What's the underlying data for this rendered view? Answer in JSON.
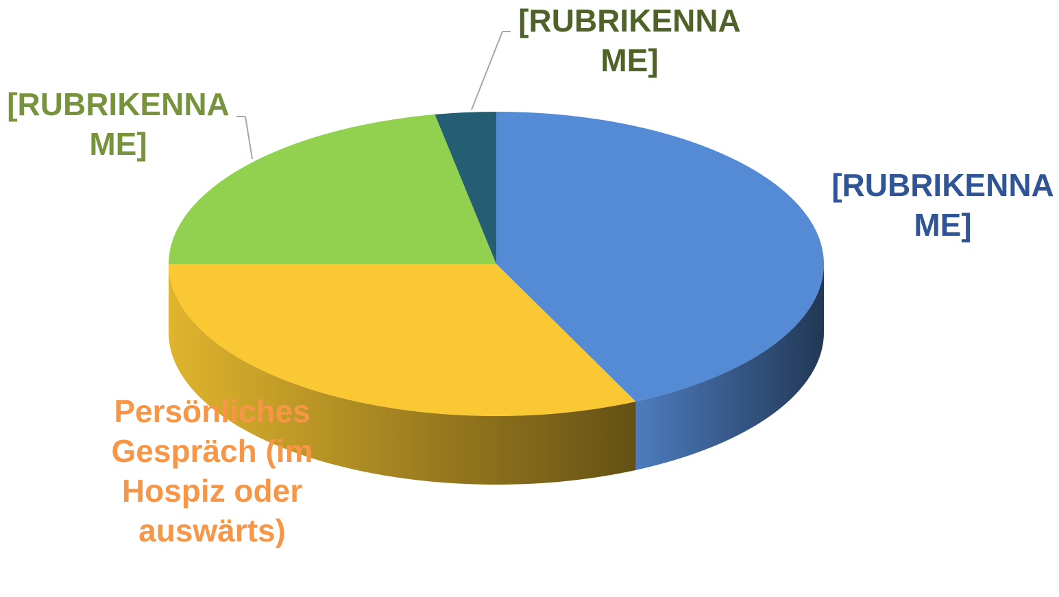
{
  "chart_data": {
    "type": "pie",
    "categories": [
      "[RUBRIKENNAME]",
      "Persönliches Gespräch (im Hospiz oder auswärts)",
      "[RUBRIKENNAME]",
      "[RUBRIKENNAME]"
    ],
    "values": [
      43,
      32,
      22,
      3
    ],
    "colors": [
      "#558ad4",
      "#f9c832",
      "#92d050",
      "#255e72"
    ],
    "label_colors": [
      "#2f5597",
      "#f79646",
      "#77933c",
      "#4f6228"
    ]
  }
}
